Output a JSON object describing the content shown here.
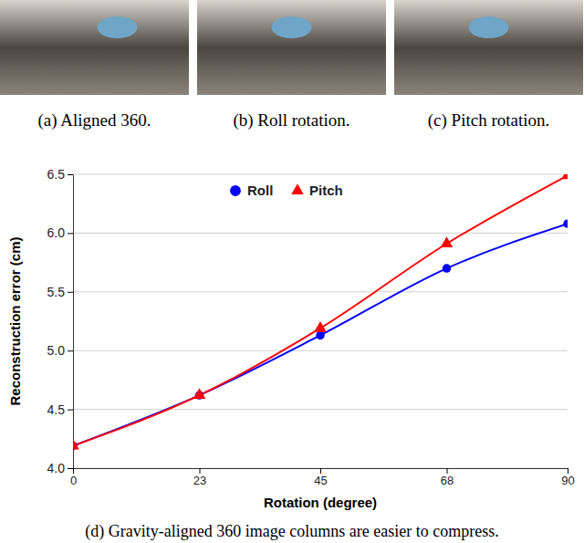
{
  "panels": [
    "(a) Aligned 360.",
    "(b) Roll rotation.",
    "(c) Pitch rotation."
  ],
  "caption": "(d) Gravity-aligned 360 image columns are easier to compress.",
  "chart_data": {
    "type": "line",
    "x_label": "Rotation (degree)",
    "y_label": "Reconstruction error (cm)",
    "x": [
      0,
      23,
      45,
      68,
      90
    ],
    "series": [
      {
        "name": "Roll",
        "color": "#0000ff",
        "marker": "circle",
        "values": [
          4.19,
          4.62,
          5.13,
          5.7,
          6.08
        ]
      },
      {
        "name": "Pitch",
        "color": "#ff0000",
        "marker": "triangle",
        "values": [
          4.19,
          4.62,
          5.19,
          5.91,
          6.49
        ]
      }
    ],
    "xlim": [
      0,
      90
    ],
    "xticks": [
      0,
      23,
      45,
      68,
      90
    ],
    "ylim": [
      4.0,
      6.5
    ],
    "yticks": [
      {
        "value": 4,
        "label": "4.0"
      },
      {
        "value": 4.5,
        "label": "4.5"
      },
      {
        "value": 5,
        "label": "5.0"
      },
      {
        "value": 5.5,
        "label": "5.5"
      },
      {
        "value": 6,
        "label": "6.0"
      },
      {
        "value": 6.5,
        "label": "6.5"
      }
    ],
    "grid": true,
    "legend": "top"
  }
}
